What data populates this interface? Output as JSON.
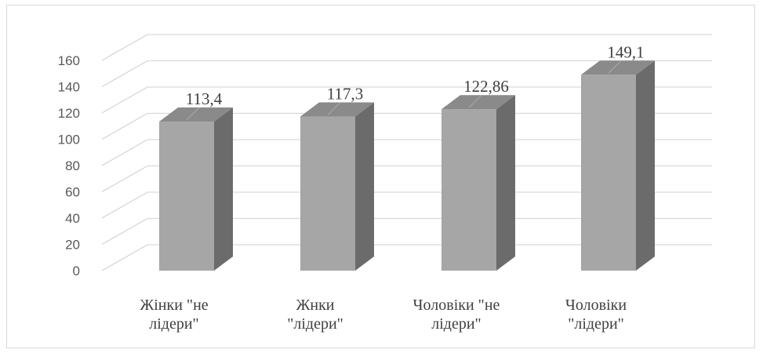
{
  "chart_data": {
    "type": "bar",
    "title": "",
    "xlabel": "",
    "ylabel": "",
    "categories": [
      [
        "Жінки \"не",
        "лідери\""
      ],
      [
        "Жнки",
        "\"лідери\""
      ],
      [
        "Чоловіки \"не",
        "лідери\""
      ],
      [
        "Чоловіки",
        "\"лідери\""
      ]
    ],
    "values": [
      113.4,
      117.3,
      122.86,
      149.1
    ],
    "data_labels": [
      "113,4",
      "117,3",
      "122,86",
      "149,1"
    ],
    "yticks": [
      "0",
      "20",
      "40",
      "60",
      "80",
      "100",
      "120",
      "140",
      "160"
    ],
    "ylim": [
      0,
      160
    ],
    "grid": true,
    "legend": "none",
    "style": "3d-column",
    "colors": {
      "front": "#a6a6a6",
      "side": "#6b6b6b",
      "top": "#8a8a8a",
      "grid": "#d9d9d9"
    }
  }
}
